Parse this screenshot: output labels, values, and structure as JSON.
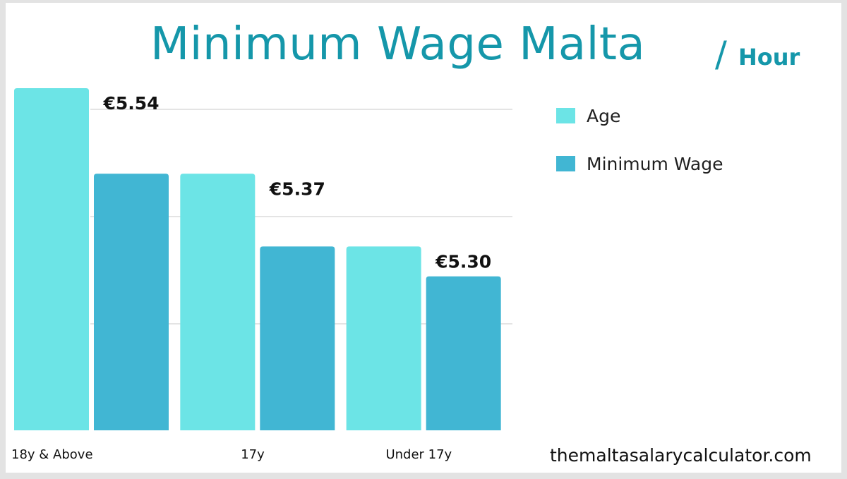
{
  "title": "Minimum Wage Malta",
  "title_suffix_separator": "/",
  "title_suffix": "Hour",
  "website": "themaltasalarycalculator.com",
  "colors": {
    "age": "#6ce4e6",
    "wage": "#41b6d3",
    "title": "#1597aa",
    "grid": "#c9c9c9"
  },
  "chart_data": {
    "type": "bar",
    "categories": [
      "18y & Above",
      "17y",
      "Under 17y"
    ],
    "series": [
      {
        "name": "Age",
        "values": [
          5.74,
          5.54,
          5.37
        ]
      },
      {
        "name": "Minimum Wage",
        "values": [
          5.54,
          5.37,
          5.3
        ]
      }
    ],
    "data_labels": [
      "€5.54",
      "€5.37",
      "€5.30"
    ],
    "ylim": [
      4.94,
      5.74
    ],
    "grid": true,
    "legend": "right"
  }
}
